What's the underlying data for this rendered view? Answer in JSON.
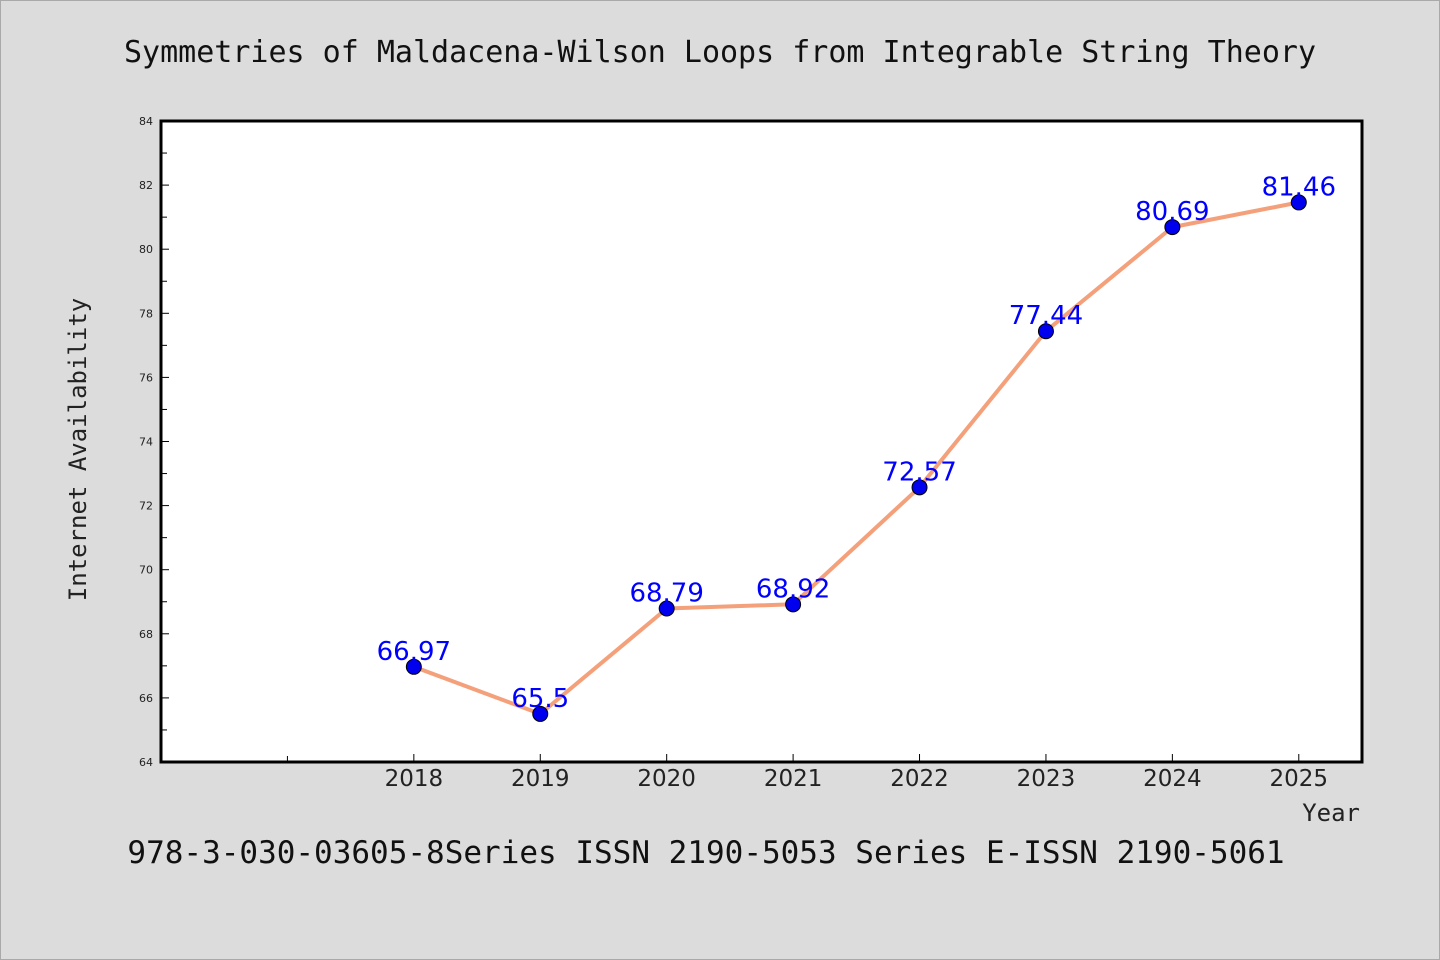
{
  "title": "Symmetries of Maldacena-Wilson Loops from Integrable String Theory",
  "footer": "978-3-030-03605-8Series ISSN 2190-5053 Series E-ISSN 2190-5061",
  "colors": {
    "background": "#dcdcdc",
    "plot_background": "#ffffff",
    "line": "#f4a07a",
    "marker": "#0000ee",
    "data_label": "#0000ff"
  },
  "chart_data": {
    "type": "line",
    "title": "Symmetries of Maldacena-Wilson Loops from Integrable String Theory",
    "xlabel": "Year",
    "ylabel": "Internet Availability",
    "categories": [
      "2018",
      "2019",
      "2020",
      "2021",
      "2022",
      "2023",
      "2024",
      "2025"
    ],
    "x_domain": [
      2016,
      2025.5
    ],
    "blank_x_ticks": [
      2016,
      2017
    ],
    "ylim": [
      64,
      84
    ],
    "y_major_ticks": [
      64,
      66,
      68,
      70,
      72,
      74,
      76,
      78,
      80,
      82,
      84
    ],
    "y_minor_step": 1,
    "grid": false,
    "series": [
      {
        "values": [
          66.97,
          65.5,
          68.79,
          68.92,
          72.57,
          77.44,
          80.69,
          81.46
        ],
        "labels": [
          "66.97",
          "65.5",
          "68.79",
          "68.92",
          "72.57",
          "77.44",
          "80.69",
          "81.46"
        ]
      }
    ]
  }
}
